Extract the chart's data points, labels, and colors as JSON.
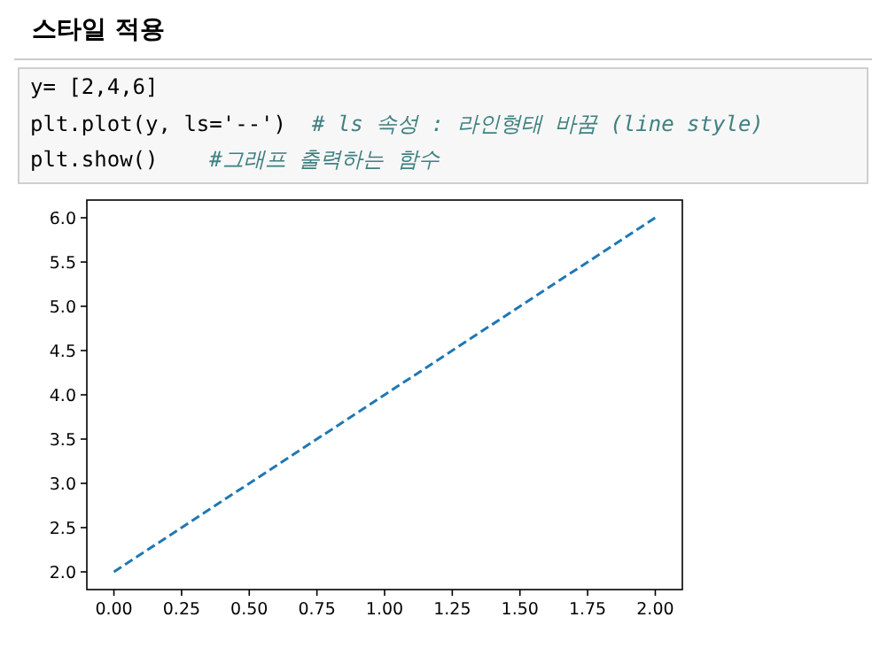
{
  "chart_data": {
    "type": "line",
    "title": "스타일 적용",
    "annotations": [
      "y= [2,4,6]",
      "plt.plot(y, ls='--')  # ls 속성 : 라인형태 바꿈 (line style)",
      "plt.show()    #그래프 출력하는 함수"
    ],
    "x": [
      0,
      1,
      2
    ],
    "series": [
      {
        "color": "#1f77b4",
        "values": [
          2,
          4,
          6
        ]
      }
    ],
    "line_style": "dashed",
    "marker": "none",
    "grid": false,
    "xlim": [
      -0.1,
      2.1
    ],
    "ylim": [
      1.8,
      6.2
    ],
    "xticks": [
      {
        "value": 0,
        "label": "0.00"
      },
      {
        "value": 0.25,
        "label": "0.25"
      },
      {
        "value": 0.5,
        "label": "0.50"
      },
      {
        "value": 0.75,
        "label": "0.75"
      },
      {
        "value": 1,
        "label": "1.00"
      },
      {
        "value": 1.25,
        "label": "1.25"
      },
      {
        "value": 1.5,
        "label": "1.50"
      },
      {
        "value": 1.75,
        "label": "1.75"
      },
      {
        "value": 2,
        "label": "2.00"
      }
    ],
    "yticks": [
      {
        "value": 2,
        "label": "2.0"
      },
      {
        "value": 2.5,
        "label": "2.5"
      },
      {
        "value": 3,
        "label": "3.0"
      },
      {
        "value": 3.5,
        "label": "3.5"
      },
      {
        "value": 4,
        "label": "4.0"
      },
      {
        "value": 4.5,
        "label": "4.5"
      },
      {
        "value": 5,
        "label": "5.0"
      },
      {
        "value": 5.5,
        "label": "5.5"
      },
      {
        "value": 6,
        "label": "6.0"
      }
    ]
  }
}
